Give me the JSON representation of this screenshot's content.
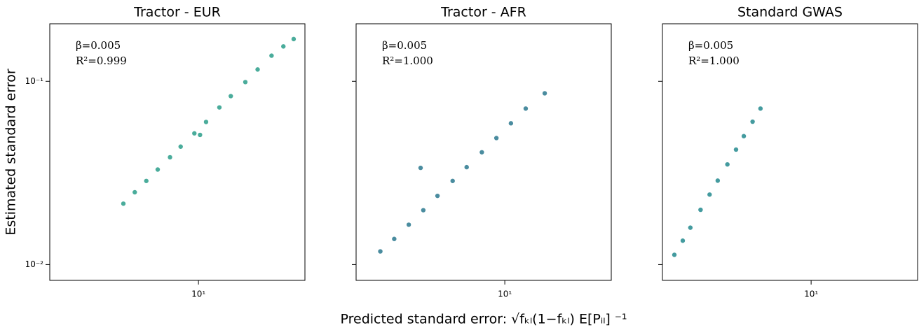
{
  "chart_data": [
    {
      "type": "scatter",
      "title": "Tractor - EUR",
      "ylabel": "Estimated standard error",
      "annotations": [
        "β=0.005",
        "R²=0.999"
      ],
      "x": [
        3.9,
        4.5,
        5.2,
        6,
        7,
        8,
        9.5,
        11,
        13,
        15,
        18,
        21,
        25,
        29,
        33,
        10.2
      ],
      "values": [
        0.0215,
        0.0248,
        0.0286,
        0.033,
        0.0385,
        0.044,
        0.052,
        0.06,
        0.072,
        0.083,
        0.099,
        0.116,
        0.138,
        0.155,
        0.17,
        0.051
      ],
      "color": "#2a9d8a",
      "xlog": true,
      "ylog": true,
      "xlim": [
        1.55,
        38
      ],
      "ylim": [
        0.0082,
        0.206
      ],
      "xticks": [
        {
          "value": 10,
          "label": "10¹"
        }
      ],
      "yticks": [
        {
          "value": 0.01,
          "label": "10⁻²"
        },
        {
          "value": 0.1,
          "label": "10⁻¹"
        }
      ]
    },
    {
      "type": "scatter",
      "title": "Tractor - AFR",
      "xlabel": "Predicted standard error: √fₖₗ(1−fₖₗ) E[Pᵢₗ] ⁻¹",
      "annotations": [
        "β=0.005",
        "R²=1.000"
      ],
      "x": [
        2.1,
        2.5,
        3,
        3.6,
        4.3,
        5.2,
        6.2,
        7.5,
        9,
        10.8,
        13,
        16.5,
        3.48
      ],
      "values": [
        0.0118,
        0.0138,
        0.0165,
        0.0198,
        0.0237,
        0.0286,
        0.034,
        0.041,
        0.049,
        0.059,
        0.071,
        0.086,
        0.0337
      ],
      "color": "#2a788e",
      "xlog": true,
      "ylog": true,
      "xlim": [
        1.55,
        38
      ],
      "ylim": [
        0.0082,
        0.206
      ],
      "xticks": [
        {
          "value": 10,
          "label": "10¹"
        }
      ],
      "yticks": [
        0.01,
        0.1
      ]
    },
    {
      "type": "scatter",
      "title": "Standard GWAS",
      "annotations": [
        "β=0.005",
        "R²=1.000"
      ],
      "x": [
        1.8,
        2,
        2.2,
        2.5,
        2.8,
        3.1,
        3.5,
        3.9,
        4.3,
        4.8,
        5.3
      ],
      "values": [
        0.0113,
        0.0135,
        0.0159,
        0.0199,
        0.0241,
        0.0287,
        0.0352,
        0.0424,
        0.0502,
        0.0602,
        0.071
      ],
      "color": "#23898e",
      "xlog": true,
      "ylog": true,
      "xlim": [
        1.55,
        38
      ],
      "ylim": [
        0.0082,
        0.206
      ],
      "xticks": [
        {
          "value": 10,
          "label": "10¹"
        }
      ],
      "yticks": [
        0.01,
        0.1
      ]
    }
  ]
}
